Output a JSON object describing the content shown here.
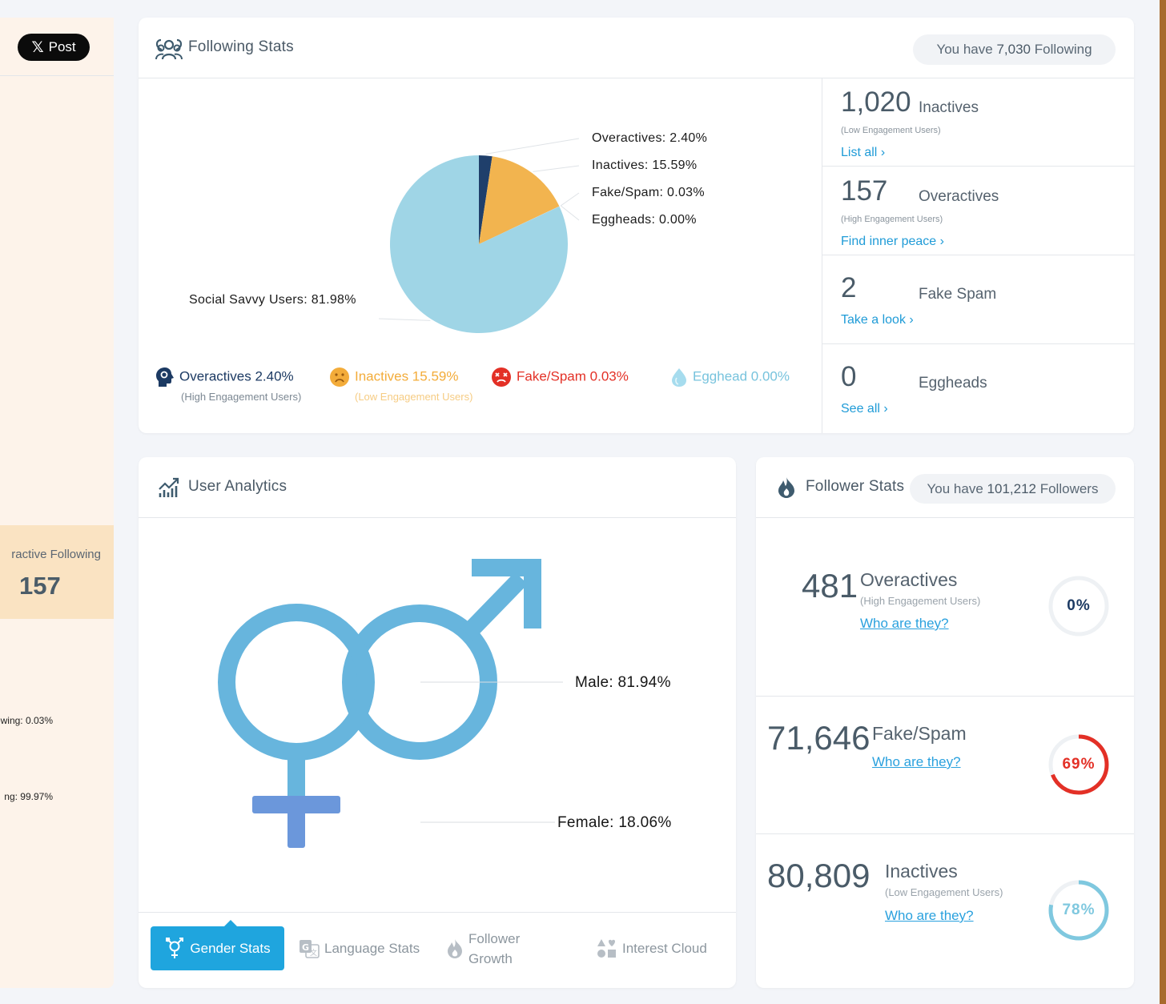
{
  "left_panel": {
    "post_button": "Post",
    "x_logo": "𝕏",
    "overactive_label": "ractive Following",
    "overactive_value": "157",
    "line1": "wing: 0.03%",
    "line2": "ng: 99.97%"
  },
  "following": {
    "title": "Following Stats",
    "pill_prefix": "You have ",
    "pill_count": "7,030",
    "pill_suffix": " Following",
    "chart_data": {
      "type": "pie",
      "categories": [
        "Overactives",
        "Inactives",
        "Fake/Spam",
        "Eggheads",
        "Social Savvy Users"
      ],
      "values": [
        2.4,
        15.59,
        0.03,
        0.0,
        81.98
      ],
      "colors": [
        "#1f3f6b",
        "#f2b44f",
        "#c8d3dc",
        "#b0e3f0",
        "#9fd5e6"
      ],
      "labels": [
        "Overactives: 2.40%",
        "Inactives: 15.59%",
        "Fake/Spam: 0.03%",
        "Eggheads: 0.00%",
        "Social Savvy Users: 81.98%"
      ]
    },
    "legend": [
      {
        "label": "Overactives 2.40%",
        "sub": "(High Engagement Users)",
        "color": "#1c3a63",
        "icon": "head-gear-icon"
      },
      {
        "label": "Inactives 15.59%",
        "sub": "(Low Engagement Users)",
        "color": "#f3ac3a",
        "icon": "sad-face-icon"
      },
      {
        "label": "Fake/Spam 0.03%",
        "sub": "",
        "color": "#e33026",
        "icon": "dead-face-icon"
      },
      {
        "label": "Egghead 0.00%",
        "sub": "",
        "color": "#77c3dd",
        "icon": "egg-icon"
      }
    ],
    "stats": [
      {
        "num": "1,020",
        "name": "Inactives",
        "sub": "(Low Engagement Users)",
        "link": "List all"
      },
      {
        "num": "157",
        "name": "Overactives",
        "sub": "(High Engagement Users)",
        "link": "Find inner peace"
      },
      {
        "num": "2",
        "name": "Fake Spam",
        "sub": "",
        "link": "Take a look"
      },
      {
        "num": "0",
        "name": "Eggheads",
        "sub": "",
        "link": "See all"
      }
    ],
    "chevron": "›"
  },
  "analytics": {
    "title": "User Analytics",
    "chart_data": {
      "type": "pie",
      "categories": [
        "Male",
        "Female"
      ],
      "values": [
        81.94,
        18.06
      ],
      "labels": [
        "Male: 81.94%",
        "Female: 18.06%"
      ]
    },
    "tabs": [
      {
        "label": "Gender Stats",
        "icon": "gender-icon"
      },
      {
        "label": "Language Stats",
        "icon": "translate-icon"
      },
      {
        "label_line1": "Follower",
        "label_line2": "Growth",
        "icon": "flame-icon"
      },
      {
        "label": "Interest Cloud",
        "icon": "shapes-icon"
      }
    ]
  },
  "followers": {
    "title": "Follower Stats",
    "pill_prefix": "You have ",
    "pill_count": "101,212",
    "pill_suffix": " Followers",
    "rows": [
      {
        "num": "481",
        "name": "Overactives",
        "sub": "(High Engagement Users)",
        "link": "Who are they?",
        "percent": 0,
        "percent_text": "0%",
        "color": "#1c3a63"
      },
      {
        "num": "71,646",
        "name": "Fake/Spam",
        "sub": "",
        "link": "Who are they?",
        "percent": 69,
        "percent_text": "69%",
        "color": "#e33026"
      },
      {
        "num": "80,809",
        "name": "Inactives",
        "sub": "(Low Engagement Users)",
        "link": "Who are they?",
        "percent": 78,
        "percent_text": "78%",
        "color": "#7fc8df"
      }
    ]
  }
}
